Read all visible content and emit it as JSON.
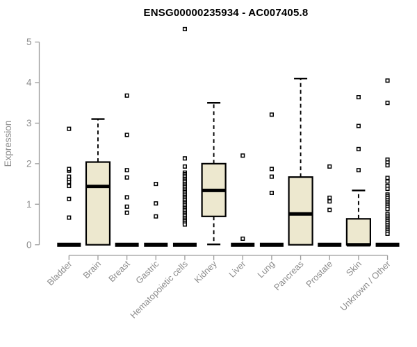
{
  "chart_data": {
    "type": "boxplot",
    "title": "ENSG00000235934 - AC007405.8",
    "ylabel": "Expression",
    "xlabel": "",
    "ylim": [
      0,
      5
    ],
    "yticks": [
      0,
      1,
      2,
      3,
      4,
      5
    ],
    "grid": false,
    "legend": "none",
    "categories": [
      "Bladder",
      "Brain",
      "Breast",
      "Gastric",
      "Hematopoietic cells",
      "Kidney",
      "Liver",
      "Lung",
      "Pancreas",
      "Prostate",
      "Skin",
      "Unknown / Other"
    ],
    "boxes": [
      {
        "category": "Bladder",
        "q1": 0,
        "median": 0,
        "q3": 0,
        "whisker_low": 0,
        "whisker_high": 0,
        "outliers": [
          0.67,
          1.13,
          1.45,
          1.55,
          1.62,
          1.68,
          1.83,
          1.87,
          2.86
        ]
      },
      {
        "category": "Brain",
        "q1": 0,
        "median": 1.44,
        "q3": 2.04,
        "whisker_low": 0,
        "whisker_high": 3.1,
        "outliers": []
      },
      {
        "category": "Breast",
        "q1": 0,
        "median": 0,
        "q3": 0,
        "whisker_low": 0,
        "whisker_high": 0,
        "outliers": [
          0.79,
          0.94,
          1.17,
          1.66,
          1.84,
          2.71,
          3.68
        ]
      },
      {
        "category": "Gastric",
        "q1": 0,
        "median": 0,
        "q3": 0,
        "whisker_low": 0,
        "whisker_high": 0,
        "outliers": [
          0.7,
          1.02,
          1.5
        ]
      },
      {
        "category": "Hematopoietic cells",
        "q1": 0,
        "median": 0,
        "q3": 0,
        "whisker_low": 0,
        "whisker_high": 0,
        "outliers": [
          5.32,
          2.13,
          1.93,
          1.78,
          1.74,
          1.7,
          1.66,
          1.62,
          1.58,
          1.54,
          1.5,
          1.46,
          1.42,
          1.38,
          1.34,
          1.3,
          1.26,
          1.22,
          1.18,
          1.14,
          1.1,
          1.06,
          1.02,
          0.98,
          0.94,
          0.9,
          0.86,
          0.82,
          0.78,
          0.74,
          0.7,
          0.66,
          0.62,
          0.58,
          0.54,
          0.5
        ]
      },
      {
        "category": "Kidney",
        "q1": 0.7,
        "median": 1.34,
        "q3": 2.0,
        "whisker_low": 0.01,
        "whisker_high": 3.5,
        "outliers": []
      },
      {
        "category": "Liver",
        "q1": 0,
        "median": 0,
        "q3": 0,
        "whisker_low": 0,
        "whisker_high": 0,
        "outliers": [
          0.15,
          2.2
        ]
      },
      {
        "category": "Lung",
        "q1": 0,
        "median": 0,
        "q3": 0,
        "whisker_low": 0,
        "whisker_high": 0,
        "outliers": [
          1.28,
          1.68,
          1.87,
          3.21
        ]
      },
      {
        "category": "Pancreas",
        "q1": 0,
        "median": 0.76,
        "q3": 1.67,
        "whisker_low": 0,
        "whisker_high": 4.1,
        "outliers": []
      },
      {
        "category": "Prostate",
        "q1": 0,
        "median": 0,
        "q3": 0,
        "whisker_low": 0,
        "whisker_high": 0,
        "outliers": [
          0.86,
          1.07,
          1.16,
          1.93
        ]
      },
      {
        "category": "Skin",
        "q1": 0,
        "median": 0,
        "q3": 0.64,
        "whisker_low": 0,
        "whisker_high": 1.34,
        "outliers": [
          1.84,
          2.36,
          2.93,
          3.64
        ]
      },
      {
        "category": "Unknown / Other",
        "q1": 0,
        "median": 0,
        "q3": 0,
        "whisker_low": 0,
        "whisker_high": 0,
        "outliers": [
          4.05,
          3.5,
          2.1,
          2.03,
          1.96,
          1.65,
          1.56,
          1.45,
          1.38,
          1.24,
          1.195,
          1.15,
          1.105,
          1.06,
          1.015,
          0.97,
          0.925,
          0.88,
          0.76,
          0.715,
          0.67,
          0.625,
          0.58,
          0.535,
          0.49,
          0.445,
          0.4,
          0.355,
          0.31,
          0.27
        ]
      }
    ],
    "colors": {
      "box_fill": "#EDE8CF",
      "box_border": "#000000",
      "median": "#000000",
      "whisker": "#000000",
      "outlier_stroke": "#000000",
      "outlier_fill": "#ffffff",
      "axis_line": "#9c9c9c",
      "tick_label": "#8c8c8c",
      "title": "#000000",
      "background": "#ffffff"
    }
  }
}
